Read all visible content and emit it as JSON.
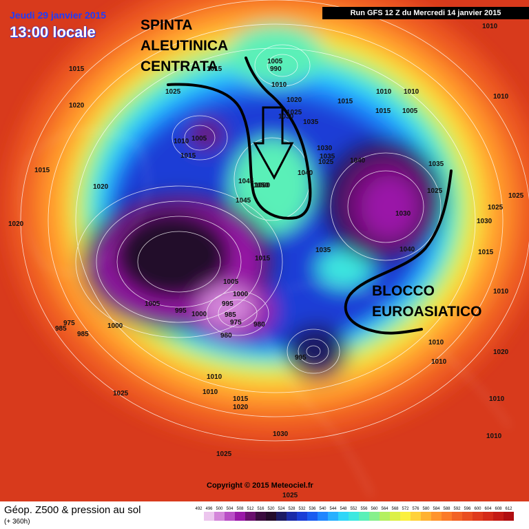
{
  "header": {
    "date_label": "Jeudi 29 janvier 2015",
    "time_label": "13:00 locale",
    "run_label": "Run GFS 12 Z du Mercredi 14 janvier 2015"
  },
  "annotations": {
    "top": [
      "SPINTA",
      "ALEUTINICA",
      "CENTRATA"
    ],
    "bottom": [
      "BLOCCO",
      "EUROASIATICO"
    ]
  },
  "isobar_labels": [
    "1015",
    "1020",
    "1015",
    "1020",
    "1020",
    "1025",
    "1010",
    "1005",
    "1015",
    "1015",
    "1005",
    "990",
    "1010",
    "1020",
    "1025",
    "1030",
    "1035",
    "1030",
    "1035",
    "1040",
    "1025",
    "1040",
    "1045",
    "1045",
    "1050",
    "1060",
    "1035",
    "1015",
    "1005",
    "1000",
    "995",
    "985",
    "975",
    "980",
    "980",
    "1000",
    "995",
    "1005",
    "975",
    "985",
    "985",
    "1000",
    "995",
    "1010",
    "1010",
    "1010",
    "1015",
    "1020",
    "1025",
    "1030",
    "1025",
    "1015",
    "1010",
    "1010",
    "1015",
    "1005",
    "1025",
    "1035",
    "1030",
    "1040",
    "1010",
    "1010",
    "1025",
    "1025",
    "1030",
    "1015",
    "1010",
    "1020",
    "1010",
    "1010",
    "1010",
    "1025"
  ],
  "copyright": "Copyright © 2015 Meteociel.fr",
  "footer": {
    "title": "Géop. Z500 & pression au sol",
    "subtitle": "(+ 360h)"
  },
  "legend": {
    "values": [
      "492",
      "496",
      "500",
      "504",
      "508",
      "512",
      "516",
      "520",
      "524",
      "528",
      "532",
      "536",
      "540",
      "544",
      "548",
      "552",
      "556",
      "560",
      "564",
      "568",
      "572",
      "576",
      "580",
      "584",
      "588",
      "592",
      "596",
      "600",
      "604",
      "608",
      "612"
    ],
    "colors": [
      "#ffffff",
      "#ecc6ee",
      "#d486da",
      "#b94ec6",
      "#9a18a8",
      "#6a0f6e",
      "#3b0c3f",
      "#240b2a",
      "#1c1a64",
      "#1b2ba8",
      "#1b3ed6",
      "#1b5cf0",
      "#1f86ff",
      "#28b0ff",
      "#2fd6f8",
      "#3ce8e0",
      "#5af0b8",
      "#86f08c",
      "#b4f060",
      "#dcf046",
      "#fbf03e",
      "#ffd23a",
      "#ffb232",
      "#ff942c",
      "#fb7a28",
      "#f26224",
      "#e94e20",
      "#df3a1c",
      "#d42a18",
      "#c41a14",
      "#b00e10"
    ]
  }
}
